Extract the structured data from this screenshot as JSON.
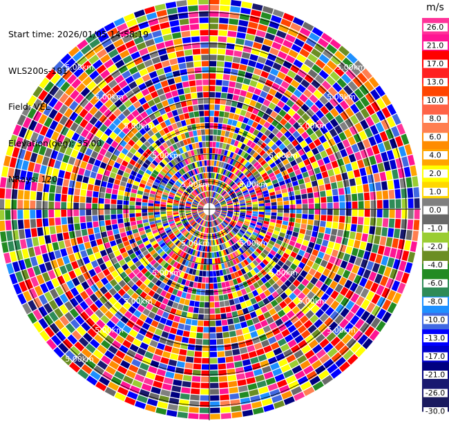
{
  "info": {
    "start_time": "Start time: 2026/01/05 14:58:19",
    "instrument": "WLS200s-181",
    "field": "Field: VEL",
    "elevation": "Elevation(deg): 35.00",
    "nrays": "NRays: 120"
  },
  "ring_label": "5.00km",
  "colorbar": {
    "unit": "m/s",
    "ticks": [
      "26.0",
      "21.0",
      "17.0",
      "13.0",
      "10.0",
      "8.0",
      "6.0",
      "4.0",
      "2.0",
      "1.0",
      "0.0",
      "-1.0",
      "-2.0",
      "-4.0",
      "-6.0",
      "-8.0",
      "-10.0",
      "-13.0",
      "-17.0",
      "-21.0",
      "-26.0",
      "-30.0"
    ],
    "colors": [
      "#ff3399",
      "#ff1493",
      "#ff0000",
      "#ff2020",
      "#ff4500",
      "#ff6347",
      "#ff7f50",
      "#ff8c00",
      "#ffa500",
      "#ffff00",
      "#ffd700",
      "#808080",
      "#696969",
      "#9acd32",
      "#6b8e23",
      "#228b22",
      "#2e8b57",
      "#1e90ff",
      "#4169e1",
      "#0000ff",
      "#0000cd",
      "#000080",
      "#191970",
      "#1a1a5e"
    ]
  }
}
